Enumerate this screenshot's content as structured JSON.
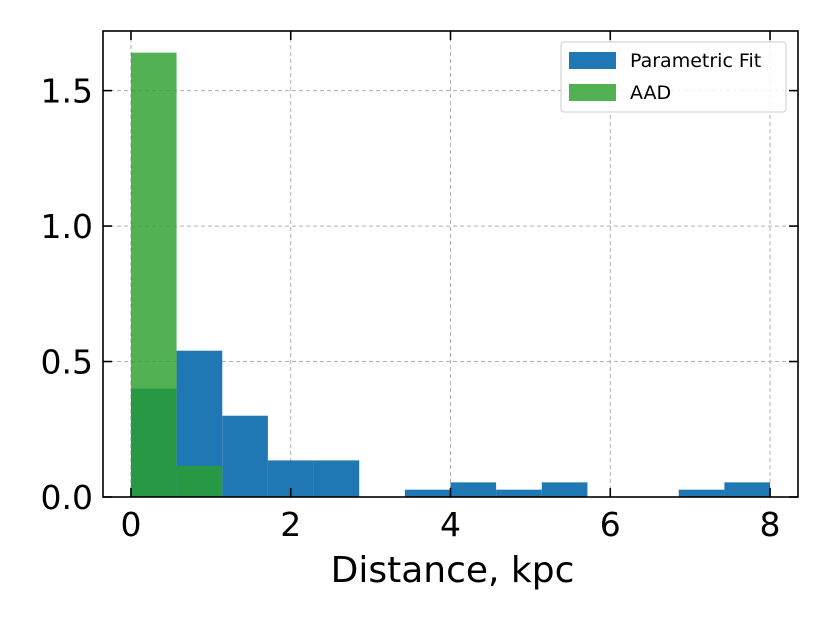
{
  "chart_data": {
    "type": "bar",
    "title": "",
    "xlabel": "Distance, kpc",
    "ylabel": "",
    "xlim": [
      -0.35,
      8.35
    ],
    "ylim": [
      0,
      1.72
    ],
    "x_ticks": [
      0,
      2,
      4,
      6,
      8
    ],
    "x_tick_labels": [
      "0",
      "2",
      "4",
      "6",
      "8"
    ],
    "y_ticks": [
      0.0,
      0.5,
      1.0,
      1.5
    ],
    "y_tick_labels": [
      "0.0",
      "0.5",
      "1.0",
      "1.5"
    ],
    "grid": true,
    "legend": "top-right",
    "series": [
      {
        "name": "Parametric Fit",
        "color": "#1f77b4",
        "bin_edges": [
          0.0,
          0.571,
          1.143,
          1.714,
          2.286,
          2.857,
          3.429,
          4.0,
          4.571,
          5.143,
          5.714,
          6.286,
          6.857,
          7.429,
          8.0
        ],
        "values": [
          0.4,
          0.54,
          0.3,
          0.135,
          0.135,
          0.0,
          0.027,
          0.054,
          0.027,
          0.054,
          0.0,
          0.0,
          0.027,
          0.054
        ]
      },
      {
        "name": "AAD",
        "color": "#2ca02c",
        "bin_edges": [
          0.0,
          0.571,
          1.143
        ],
        "values": [
          1.64,
          0.115
        ]
      }
    ]
  }
}
